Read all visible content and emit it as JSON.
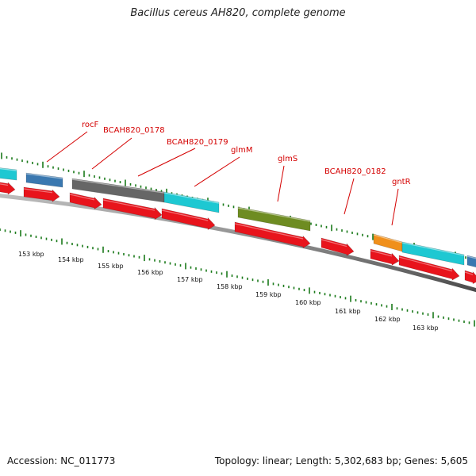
{
  "title": "Bacillus cereus AH820, complete genome",
  "footer": {
    "accession": "Accession: NC_011773",
    "stats": "Topology: linear; Length: 5,302,683 bp; Genes: 5,605"
  },
  "colors": {
    "cds": "#e8141c",
    "gene_teal": "#1ec8d2",
    "gene_blue": "#3a78b0",
    "gene_gray": "#666666",
    "gene_olive": "#6e8c22",
    "gene_orange": "#f0901c",
    "label": "#d40000",
    "tick": "#1a7a1a"
  },
  "genes": [
    {
      "name": "rocF"
    },
    {
      "name": "BCAH820_0178"
    },
    {
      "name": "BCAH820_0179"
    },
    {
      "name": "glmM"
    },
    {
      "name": "glmS"
    },
    {
      "name": "BCAH820_0182"
    },
    {
      "name": "gntR"
    }
  ],
  "scale": [
    {
      "label": "153 kbp"
    },
    {
      "label": "154 kbp"
    },
    {
      "label": "155 kbp"
    },
    {
      "label": "156 kbp"
    },
    {
      "label": "157 kbp"
    },
    {
      "label": "158 kbp"
    },
    {
      "label": "159 kbp"
    },
    {
      "label": "160 kbp"
    },
    {
      "label": "161 kbp"
    },
    {
      "label": "162 kbp"
    },
    {
      "label": "163 kbp"
    }
  ]
}
